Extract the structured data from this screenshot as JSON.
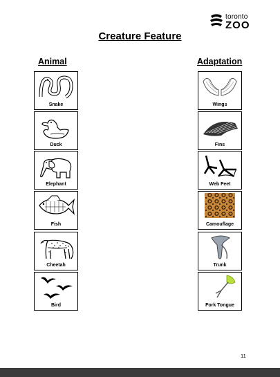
{
  "logo": {
    "top": "toronto",
    "bottom": "ZOO"
  },
  "title": "Creature Feature",
  "columns": {
    "animal": "Animal",
    "adaptation": "Adaptation"
  },
  "animals": [
    "Snake",
    "Duck",
    "Elephant",
    "Fish",
    "Cheetah",
    "Bird"
  ],
  "adaptations": [
    "Wings",
    "Fins",
    "Web Feet",
    "Camouflage",
    "Trunk",
    "Fork Tongue"
  ],
  "page_number": "11",
  "colors": {
    "leopard_base": "#c9893a",
    "leopard_spot": "#3a2210",
    "tongue_green": "#b9e03a",
    "bar": "#3b3b3b"
  }
}
